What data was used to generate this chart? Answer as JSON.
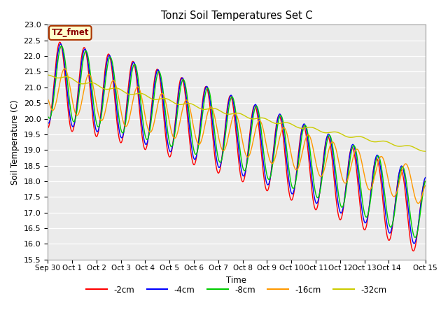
{
  "title": "Tonzi Soil Temperatures Set C",
  "xlabel": "Time",
  "ylabel": "Soil Temperature (C)",
  "ylim": [
    15.5,
    23.0
  ],
  "series_labels": [
    "-2cm",
    "-4cm",
    "-8cm",
    "-16cm",
    "-32cm"
  ],
  "series_colors": [
    "#ff0000",
    "#0000ff",
    "#00cc00",
    "#ff9900",
    "#cccc00"
  ],
  "line_widths": [
    1.0,
    1.0,
    1.0,
    1.0,
    1.0
  ],
  "annotation_text": "TZ_fmet",
  "annotation_bg": "#ffffcc",
  "annotation_border": "#aa3300",
  "tick_positions": [
    0,
    1,
    2,
    3,
    4,
    5,
    6,
    7,
    8,
    9,
    10,
    11,
    12,
    13,
    14,
    15.5
  ],
  "tick_labels": [
    "Sep 30",
    "Oct 1",
    "Oct 2",
    "Oct 3",
    "Oct 4",
    "Oct 5",
    "Oct 6",
    "Oct 7",
    "Oct 8",
    "Oct 9",
    "Oct 10",
    "Oct 11",
    "Oct 12",
    "Oct 13",
    "Oct 14",
    "Oct 15"
  ]
}
